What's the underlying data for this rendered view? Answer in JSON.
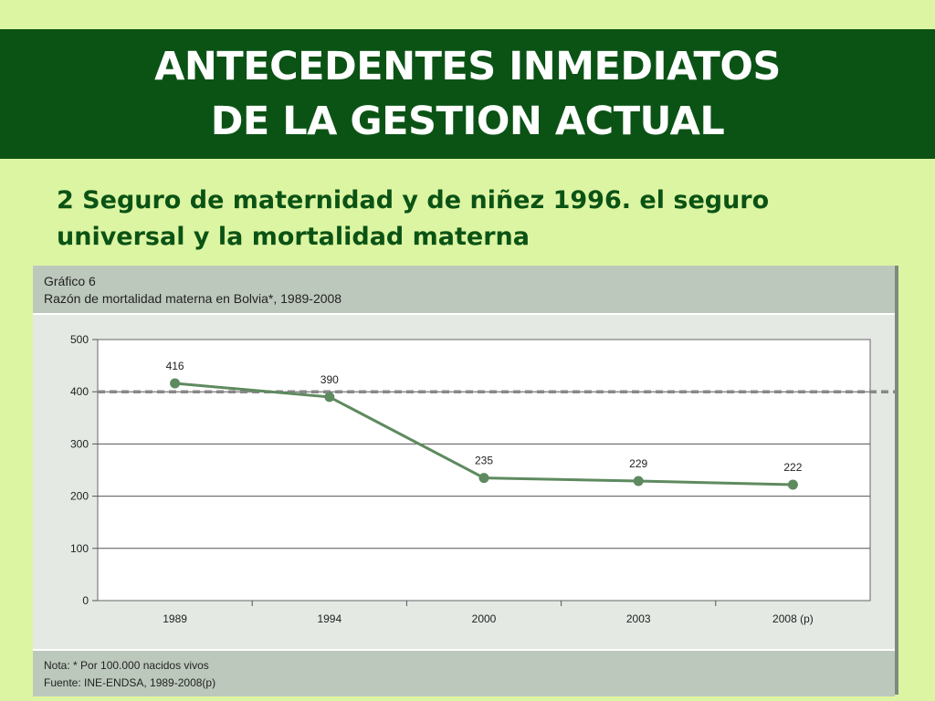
{
  "slide": {
    "title_line1": "ANTECEDENTES INMEDIATOS",
    "title_line2": "DE LA GESTION ACTUAL",
    "subtitle_line1": "2  Seguro de maternidad y de niñez 1996. el seguro",
    "subtitle_line2": "universal y la mortalidad materna"
  },
  "colors": {
    "background": "#dcf5a2",
    "banner": "#0b5315",
    "series_line": "#5e8a5f",
    "reference_line": "#888888"
  },
  "chart_data": {
    "type": "line",
    "header_line1": "Gráfico 6",
    "title": "Razón de mortalidad materna en Bolvia*, 1989-2008",
    "categories": [
      "1989",
      "1994",
      "2000",
      "2003",
      "2008 (p)"
    ],
    "series": [
      {
        "values": [
          416,
          390,
          235,
          229,
          222
        ]
      }
    ],
    "data_labels": [
      "416",
      "390",
      "235",
      "229",
      "222"
    ],
    "ylim": [
      0,
      500
    ],
    "yticks": [
      0,
      100,
      200,
      300,
      400,
      500
    ],
    "ytick_labels": [
      "0",
      "100",
      "200",
      "300",
      "400",
      "500"
    ],
    "reference_line": {
      "value": 400,
      "style": "dashed"
    },
    "grid": true,
    "legend": "none",
    "note": "Nota: * Por 100.000 nacidos vivos",
    "source": "Fuente: INE-ENDSA, 1989-2008(p)"
  }
}
